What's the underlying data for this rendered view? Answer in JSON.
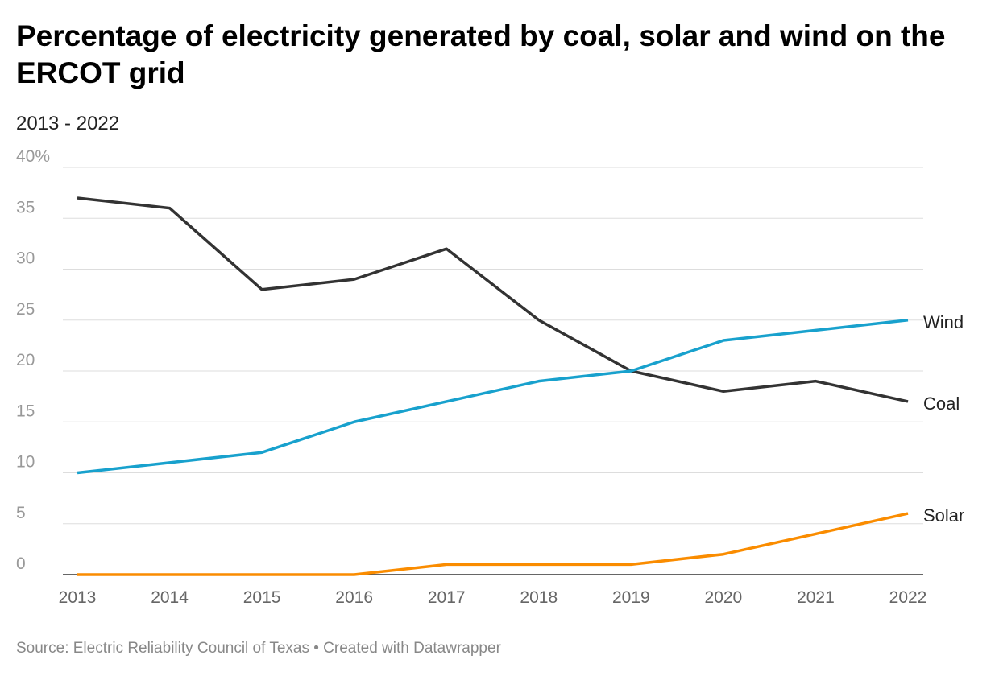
{
  "chart_data": {
    "type": "line",
    "title": "Percentage of electricity generated by coal, solar and wind on the ERCOT grid",
    "subtitle": "2013 - 2022",
    "source": "Source: Electric Reliability Council of Texas • Created with Datawrapper",
    "x": [
      2013,
      2014,
      2015,
      2016,
      2017,
      2018,
      2019,
      2020,
      2021,
      2022
    ],
    "ylim": [
      0,
      40
    ],
    "yticks": [
      0,
      5,
      10,
      15,
      20,
      25,
      30,
      35,
      40
    ],
    "ytick_labels": [
      "0",
      "5",
      "10",
      "15",
      "20",
      "25",
      "30",
      "35",
      "40%"
    ],
    "grid": true,
    "series": [
      {
        "name": "Coal",
        "color": "#333333",
        "values": [
          37,
          36,
          28,
          29,
          32,
          25,
          20,
          18,
          19,
          17
        ]
      },
      {
        "name": "Wind",
        "color": "#18a1cd",
        "values": [
          10,
          11,
          12,
          15,
          17,
          19,
          20,
          23,
          24,
          25
        ]
      },
      {
        "name": "Solar",
        "color": "#fa8c00",
        "values": [
          0,
          0,
          0,
          0,
          1,
          1,
          1,
          2,
          4,
          6
        ]
      }
    ]
  }
}
